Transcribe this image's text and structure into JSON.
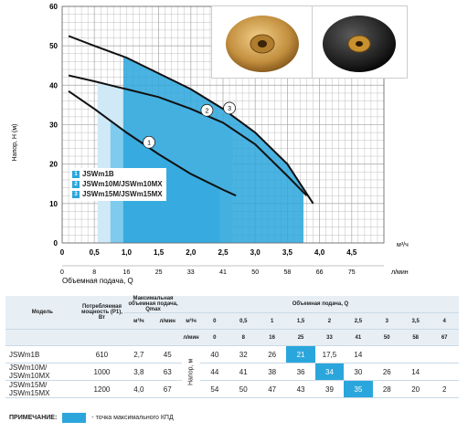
{
  "chart_data": {
    "type": "line",
    "ylabel": "Напор, H (м)",
    "xlabel": "Объемная подача, Q",
    "x_unit_top": "м³/ч",
    "x_unit_bottom": "л/мин",
    "ylim": [
      0,
      60
    ],
    "xlim_m3h": [
      0,
      5
    ],
    "y_ticks": [
      "0",
      "10",
      "20",
      "30",
      "40",
      "50",
      "60"
    ],
    "x_ticks_m3h": [
      "0",
      "0,5",
      "1,0",
      "1,5",
      "2,0",
      "2,5",
      "3,0",
      "3,5",
      "4,0",
      "4,5"
    ],
    "x_ticks_lmin": [
      "0",
      "8",
      "16",
      "25",
      "33",
      "41",
      "50",
      "58",
      "66",
      "75"
    ],
    "series": [
      {
        "name": "1",
        "values_x": [
          0.1,
          0.5,
          1.0,
          1.5,
          2.0,
          2.5,
          2.7
        ],
        "values_y": [
          38.5,
          34,
          28,
          22.5,
          17.5,
          13.5,
          12
        ]
      },
      {
        "name": "2",
        "values_x": [
          0.1,
          0.5,
          1.0,
          1.5,
          2.0,
          2.5,
          3.0,
          3.5,
          3.8
        ],
        "values_y": [
          42.5,
          41,
          39,
          37,
          34,
          30.5,
          25,
          17,
          12
        ]
      },
      {
        "name": "3",
        "values_x": [
          0.1,
          0.5,
          1.0,
          1.5,
          2.0,
          2.5,
          3.0,
          3.5,
          3.9
        ],
        "values_y": [
          52.5,
          50,
          47,
          43,
          39,
          34,
          28,
          20,
          10
        ]
      }
    ],
    "shaded_ranges": [
      {
        "x_from": 0.75,
        "x_to": 2.45
      },
      {
        "x_from": 0.55,
        "x_to": 2.65
      },
      {
        "x_from": 0.95,
        "x_to": 3.75
      }
    ],
    "legend": [
      "JSWm1B",
      "JSWm10M/JSWm10MX",
      "JSWm15M/JSWm15MX"
    ],
    "legend_numbers": [
      "1",
      "2",
      "3"
    ],
    "colors": {
      "band_light": "#cfe9f6",
      "band_mid": "#7fcbed",
      "band_dark": "#2aa6dc",
      "curve": "#111111",
      "grid": "#b0b0b0"
    }
  },
  "photos": {
    "icon1": "impeller-bronze-icon",
    "icon2": "impeller-black-icon"
  },
  "table": {
    "header": {
      "model": "Модель",
      "power": "Потребляемая мощность (Р1), Вт",
      "qmax": "Максимальная объемная подача, Qmax",
      "flow": "Объемная подача, Q",
      "unit_m3h": "м³/ч",
      "unit_lmin": "л/мин",
      "head_label": "Напор, м",
      "q_m3h": [
        "0",
        "0,5",
        "1",
        "1,5",
        "2",
        "2,5",
        "3",
        "3,5",
        "4"
      ],
      "q_lmin": [
        "0",
        "8",
        "16",
        "25",
        "33",
        "41",
        "50",
        "58",
        "67"
      ]
    },
    "rows": [
      {
        "model": "JSWm1B",
        "power": "610",
        "qm3h": "2,7",
        "qlmin": "45",
        "heads": [
          "40",
          "32",
          "26",
          "21",
          "17,5",
          "14",
          "",
          "",
          ""
        ],
        "bep": 3
      },
      {
        "model": "JSWm10M/ JSWm10MX",
        "power": "1000",
        "qm3h": "3,8",
        "qlmin": "63",
        "heads": [
          "44",
          "41",
          "38",
          "36",
          "34",
          "30",
          "26",
          "14",
          ""
        ],
        "bep": 4
      },
      {
        "model": "JSWm15M/ JSWm15MX",
        "power": "1200",
        "qm3h": "4,0",
        "qlmin": "67",
        "heads": [
          "54",
          "50",
          "47",
          "43",
          "39",
          "35",
          "28",
          "20",
          "2"
        ],
        "bep": 5
      }
    ]
  },
  "note": {
    "label": "ПРИМЕЧАНИЕ:",
    "text": "- точка максимального КПД"
  }
}
